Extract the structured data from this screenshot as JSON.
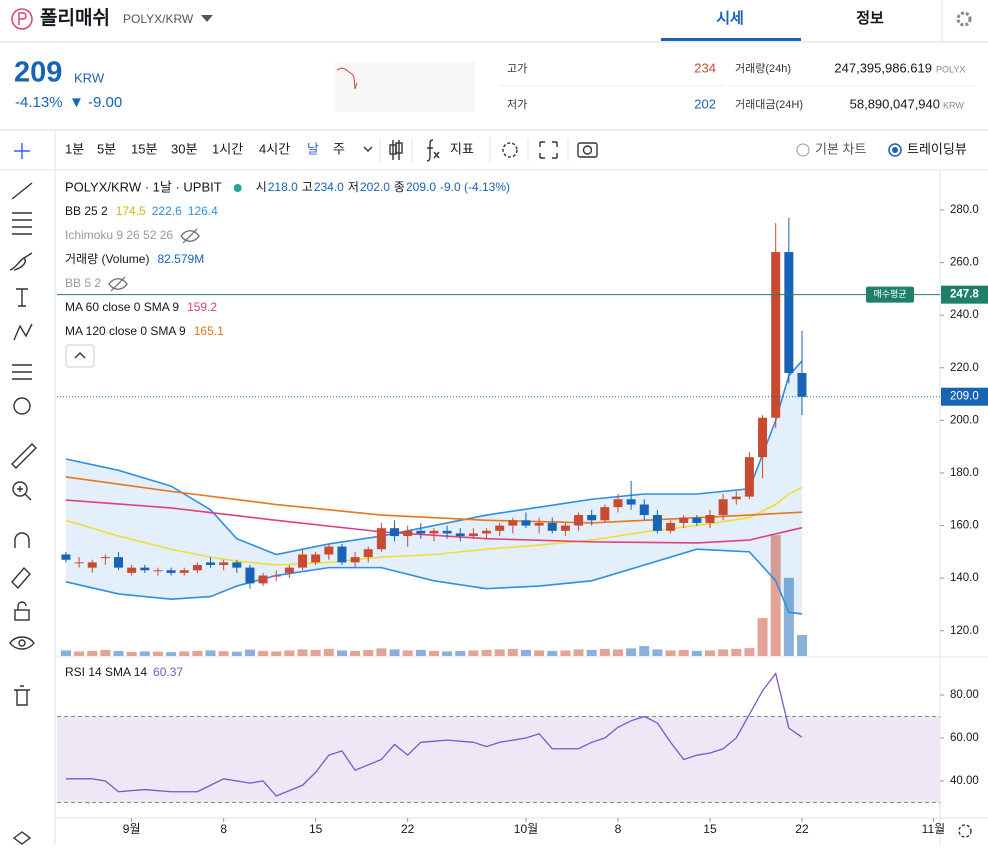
{
  "header": {
    "name": "폴리매쉬",
    "pair": "POLYX/KRW",
    "tabs": [
      "시세",
      "정보"
    ]
  },
  "ticker": {
    "price": "209",
    "currency": "KRW",
    "change_pct": "-4.13%",
    "change": "▼ -9.00",
    "high_label": "고가",
    "high": "234",
    "low_label": "저가",
    "low": "202",
    "vol_label": "거래량(24h)",
    "vol": "247,395,986.619",
    "vol_unit": "POLYX",
    "amt_label": "거래대금(24H)",
    "amt": "58,890,047,940",
    "amt_unit": "KRW"
  },
  "toolbar": {
    "intervals": [
      "1분",
      "5분",
      "15분",
      "30분",
      "1시간",
      "4시간",
      "날",
      "주"
    ],
    "indicators": "지표",
    "modes": [
      "기본 차트",
      "트레이딩뷰"
    ]
  },
  "legend": {
    "title": "POLYX/KRW · 1날 · UPBIT",
    "ohlc": [
      [
        "시",
        "218.0"
      ],
      [
        "고",
        "234.0"
      ],
      [
        "저",
        "202.0"
      ],
      [
        "종",
        "209.0"
      ]
    ],
    "change": "-9.0 (-4.13%)",
    "indicators": [
      {
        "name": "BB 25 2",
        "values": [
          "174.5",
          "222.6",
          "126.4"
        ],
        "colors": [
          "#d9b410",
          "#2f8fe0",
          "#2f8fe0"
        ]
      },
      {
        "name": "Ichimoku 9 26 52 26",
        "hidden": true
      },
      {
        "name": "거래량 (Volume)",
        "values": [
          "82.579M"
        ],
        "colors": [
          "#1763b6"
        ]
      },
      {
        "name": "BB 5 2",
        "hidden": true
      },
      {
        "name": "MA 60 close 0 SMA 9",
        "values": [
          "159.2"
        ],
        "colors": [
          "#e0407a"
        ]
      },
      {
        "name": "MA 120 close 0 SMA 9",
        "values": [
          "165.1"
        ],
        "colors": [
          "#e8761a"
        ]
      }
    ],
    "rsi": {
      "name": "RSI 14 SMA 14",
      "value": "60.37",
      "color": "#7e57c2"
    }
  },
  "chart_data": [
    {
      "type": "candlestick",
      "up_color": "#c84a31",
      "down_color": "#1763b6",
      "open": [
        149,
        146,
        144,
        148,
        148,
        142,
        144,
        143,
        143,
        142,
        143,
        146,
        145,
        146,
        144,
        138,
        141,
        142,
        144,
        146,
        149,
        152,
        146,
        148,
        151,
        159,
        156,
        158,
        157,
        158,
        157,
        156,
        157,
        158,
        160,
        162,
        160,
        161,
        158,
        160,
        164,
        162,
        167,
        170,
        168,
        164,
        158,
        161,
        163,
        161,
        164,
        170,
        171,
        186,
        201,
        264,
        218
      ],
      "high": [
        150,
        148,
        147,
        149,
        150,
        145,
        145,
        144,
        144,
        144,
        146,
        148,
        147,
        147,
        145,
        142,
        143,
        145,
        151,
        150,
        153,
        153,
        150,
        152,
        161,
        162,
        160,
        161,
        159,
        160,
        159,
        159,
        159,
        161,
        163,
        165,
        163,
        163,
        161,
        165,
        166,
        168,
        172,
        177,
        170,
        166,
        162,
        164,
        164,
        166,
        172,
        173,
        188,
        202,
        275,
        277,
        234
      ],
      "low": [
        146,
        144,
        142,
        145,
        143,
        141,
        142,
        141,
        141,
        141,
        142,
        144,
        143,
        142,
        136,
        137,
        139,
        140,
        143,
        145,
        147,
        145,
        144,
        146,
        150,
        154,
        152,
        155,
        154,
        155,
        154,
        155,
        155,
        156,
        157,
        159,
        157,
        157,
        156,
        158,
        160,
        161,
        165,
        166,
        162,
        157,
        157,
        159,
        160,
        159,
        162,
        168,
        170,
        178,
        197,
        214,
        202
      ],
      "close": [
        147,
        146,
        146,
        148,
        144,
        144,
        143,
        143,
        142,
        143,
        145,
        145,
        146,
        144,
        138,
        141,
        141,
        144,
        149,
        149,
        152,
        146,
        148,
        151,
        159,
        156,
        158,
        157,
        158,
        157,
        156,
        157,
        158,
        160,
        162,
        160,
        161,
        158,
        160,
        164,
        162,
        167,
        170,
        168,
        164,
        158,
        161,
        163,
        161,
        164,
        170,
        171,
        186,
        201,
        264,
        218,
        209
      ],
      "volume": [
        22,
        18,
        20,
        24,
        20,
        16,
        18,
        17,
        15,
        18,
        20,
        22,
        19,
        17,
        25,
        20,
        18,
        22,
        26,
        24,
        28,
        22,
        20,
        24,
        30,
        26,
        22,
        24,
        20,
        18,
        20,
        22,
        24,
        26,
        28,
        24,
        22,
        20,
        22,
        26,
        24,
        28,
        26,
        30,
        39,
        26,
        22,
        24,
        20,
        22,
        26,
        28,
        31,
        149,
        475,
        307,
        82.579
      ],
      "vlim": [
        0,
        1890
      ],
      "series": [
        {
          "x": [
            0,
            4,
            8,
            11,
            13,
            16,
            20,
            24,
            28,
            32,
            36,
            40,
            44,
            48,
            52,
            54,
            55,
            56
          ],
          "values": [
            185.3,
            181,
            175,
            166,
            155,
            149,
            153,
            156,
            160,
            164,
            167,
            170,
            172,
            172,
            174,
            200,
            217,
            222.6
          ],
          "color": "#2f8fe0"
        },
        {
          "x": [
            0,
            4,
            8,
            11,
            13,
            16,
            20,
            24,
            28,
            32,
            36,
            40,
            44,
            48,
            52,
            54,
            55,
            56
          ],
          "values": [
            162,
            156,
            151,
            148,
            146.5,
            145,
            146,
            148,
            149,
            151,
            152.6,
            154.5,
            157.6,
            160,
            163,
            168,
            172,
            174.5
          ],
          "color": "#f0dc3c"
        },
        {
          "x": [
            0,
            4,
            8,
            11,
            13,
            16,
            20,
            24,
            28,
            32,
            36,
            40,
            44,
            48,
            52,
            54,
            55,
            56
          ],
          "values": [
            138.6,
            134,
            132,
            133,
            137,
            141,
            144,
            144,
            139,
            136,
            137,
            139,
            145,
            151,
            150,
            139,
            127,
            126.4
          ],
          "color": "#2f8fe0"
        },
        {
          "x": [
            0,
            8,
            16,
            24,
            32,
            40,
            48,
            52,
            56
          ],
          "values": [
            169.7,
            166.7,
            162,
            157.6,
            155,
            153.8,
            153.4,
            154.5,
            159.2
          ],
          "color": "#e0407a"
        },
        {
          "x": [
            0,
            8,
            16,
            24,
            32,
            40,
            48,
            52,
            56
          ],
          "values": [
            178.5,
            173,
            168,
            164,
            162,
            161,
            163,
            164,
            165.1
          ],
          "color": "#e8761a"
        }
      ],
      "band_fill": "#e3effb",
      "avg_price": {
        "value": 247.8,
        "label": "247.8",
        "tag": "매수평균",
        "color": "#1e7f6a"
      },
      "last_price": {
        "value": 209,
        "label": "209.0",
        "color": "#1763b6"
      },
      "xlim": [
        -0.68,
        66.5
      ],
      "ylim": [
        110.4,
        293.3
      ],
      "yticks": [
        {
          "value": 120,
          "label": "120.0"
        },
        {
          "value": 140,
          "label": "140.0"
        },
        {
          "value": 160,
          "label": "160.0"
        },
        {
          "value": 180,
          "label": "180.0"
        },
        {
          "value": 200,
          "label": "200.0"
        },
        {
          "value": 220,
          "label": "220.0"
        },
        {
          "value": 240,
          "label": "240.0"
        },
        {
          "value": 260,
          "label": "260.0"
        },
        {
          "value": 280,
          "label": "280.0"
        }
      ],
      "xticks": [
        {
          "value": 5,
          "label": "9월"
        },
        {
          "value": 12,
          "label": "8"
        },
        {
          "value": 19,
          "label": "15"
        },
        {
          "value": 26,
          "label": "22"
        },
        {
          "value": 35,
          "label": "10월"
        },
        {
          "value": 42,
          "label": "8"
        },
        {
          "value": 49,
          "label": "15"
        },
        {
          "value": 56,
          "label": "22"
        },
        {
          "value": 66,
          "label": "11월"
        }
      ]
    },
    {
      "type": "line",
      "x": [
        0,
        2,
        3,
        4,
        6,
        8,
        10,
        11,
        12,
        14,
        15,
        16,
        18,
        19,
        20,
        21,
        22,
        24,
        25,
        26,
        27,
        29,
        31,
        32,
        33,
        35,
        36,
        37,
        39,
        40,
        41,
        42,
        43,
        44,
        45,
        46,
        47,
        48,
        49,
        50,
        51,
        52,
        53,
        54,
        55,
        56
      ],
      "values": [
        41,
        41,
        40,
        35,
        36,
        35,
        35,
        38,
        41,
        39,
        40,
        33,
        38,
        44,
        52,
        54,
        45,
        50,
        57,
        52,
        58,
        59,
        58,
        56,
        58,
        60,
        62,
        55,
        55,
        58,
        60,
        65,
        68,
        70,
        67,
        58,
        50,
        52,
        53,
        55,
        60,
        71,
        82,
        90,
        64.6,
        60.37
      ],
      "color": "#7e57c2",
      "band": [
        30,
        70
      ],
      "band_color": "#ede7f6",
      "xlim": [
        -0.68,
        66.5
      ],
      "ylim": [
        10.2,
        96.3
      ],
      "yticks": [
        {
          "value": 40,
          "label": "40.00"
        },
        {
          "value": 60,
          "label": "60.00"
        },
        {
          "value": 80,
          "label": "80.00"
        }
      ]
    }
  ]
}
